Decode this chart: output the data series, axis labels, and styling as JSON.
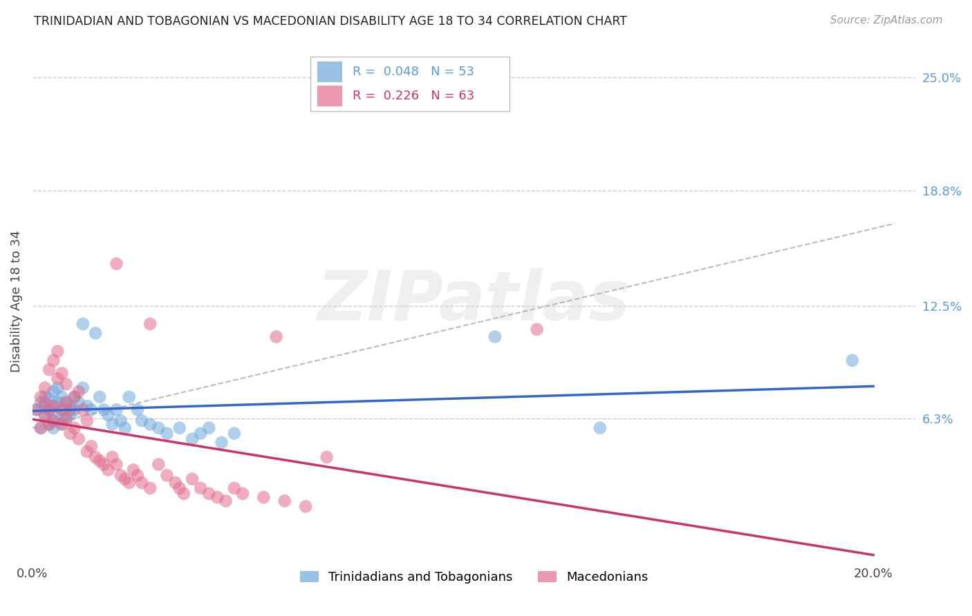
{
  "title": "TRINIDADIAN AND TOBAGONIAN VS MACEDONIAN DISABILITY AGE 18 TO 34 CORRELATION CHART",
  "source": "Source: ZipAtlas.com",
  "ylabel": "Disability Age 18 to 34",
  "xlim": [
    0.0,
    0.21
  ],
  "ylim": [
    -0.015,
    0.27
  ],
  "xticks": [
    0.0,
    0.05,
    0.1,
    0.15,
    0.2
  ],
  "xticklabels": [
    "0.0%",
    "",
    "",
    "",
    "20.0%"
  ],
  "ytick_positions": [
    0.063,
    0.125,
    0.188,
    0.25
  ],
  "ytick_labels": [
    "6.3%",
    "12.5%",
    "18.8%",
    "25.0%"
  ],
  "legend_blue_R": "0.048",
  "legend_blue_N": "53",
  "legend_pink_R": "0.226",
  "legend_pink_N": "63",
  "color_blue": "#6fa8dc",
  "color_pink": "#e06c8a",
  "trendline_blue_color": "#3366cc",
  "trendline_pink_color": "#cc3366",
  "dash_color": "#bbbbbb",
  "background_color": "#ffffff",
  "grid_color": "#cccccc",
  "blue_scatter_x": [
    0.001,
    0.002,
    0.002,
    0.003,
    0.003,
    0.003,
    0.004,
    0.004,
    0.004,
    0.005,
    0.005,
    0.005,
    0.005,
    0.006,
    0.006,
    0.006,
    0.007,
    0.007,
    0.007,
    0.008,
    0.008,
    0.009,
    0.009,
    0.01,
    0.01,
    0.011,
    0.012,
    0.012,
    0.013,
    0.014,
    0.015,
    0.016,
    0.017,
    0.018,
    0.019,
    0.02,
    0.021,
    0.022,
    0.023,
    0.025,
    0.026,
    0.028,
    0.03,
    0.032,
    0.035,
    0.038,
    0.04,
    0.042,
    0.045,
    0.048,
    0.11,
    0.195,
    0.135
  ],
  "blue_scatter_y": [
    0.068,
    0.072,
    0.058,
    0.065,
    0.07,
    0.075,
    0.06,
    0.068,
    0.074,
    0.062,
    0.07,
    0.058,
    0.078,
    0.065,
    0.072,
    0.08,
    0.06,
    0.068,
    0.075,
    0.063,
    0.072,
    0.065,
    0.07,
    0.068,
    0.075,
    0.072,
    0.115,
    0.08,
    0.07,
    0.068,
    0.11,
    0.075,
    0.068,
    0.065,
    0.06,
    0.068,
    0.062,
    0.058,
    0.075,
    0.068,
    0.062,
    0.06,
    0.058,
    0.055,
    0.058,
    0.052,
    0.055,
    0.058,
    0.05,
    0.055,
    0.108,
    0.095,
    0.058
  ],
  "pink_scatter_x": [
    0.001,
    0.002,
    0.002,
    0.003,
    0.003,
    0.003,
    0.004,
    0.004,
    0.004,
    0.005,
    0.005,
    0.005,
    0.006,
    0.006,
    0.007,
    0.007,
    0.007,
    0.008,
    0.008,
    0.008,
    0.009,
    0.009,
    0.01,
    0.01,
    0.011,
    0.011,
    0.012,
    0.013,
    0.013,
    0.014,
    0.015,
    0.016,
    0.017,
    0.018,
    0.019,
    0.02,
    0.021,
    0.022,
    0.023,
    0.024,
    0.025,
    0.026,
    0.028,
    0.03,
    0.032,
    0.034,
    0.035,
    0.036,
    0.038,
    0.04,
    0.042,
    0.044,
    0.046,
    0.048,
    0.05,
    0.055,
    0.06,
    0.065,
    0.07,
    0.02,
    0.028,
    0.058,
    0.12
  ],
  "pink_scatter_y": [
    0.068,
    0.075,
    0.058,
    0.065,
    0.072,
    0.08,
    0.06,
    0.068,
    0.09,
    0.062,
    0.07,
    0.095,
    0.085,
    0.1,
    0.06,
    0.068,
    0.088,
    0.063,
    0.072,
    0.082,
    0.055,
    0.068,
    0.058,
    0.075,
    0.052,
    0.078,
    0.068,
    0.045,
    0.062,
    0.048,
    0.042,
    0.04,
    0.038,
    0.035,
    0.042,
    0.038,
    0.032,
    0.03,
    0.028,
    0.035,
    0.032,
    0.028,
    0.025,
    0.038,
    0.032,
    0.028,
    0.025,
    0.022,
    0.03,
    0.025,
    0.022,
    0.02,
    0.018,
    0.025,
    0.022,
    0.02,
    0.018,
    0.015,
    0.042,
    0.148,
    0.115,
    0.108,
    0.112
  ],
  "dashed_line_x": [
    0.0,
    0.205
  ],
  "dashed_line_y": [
    0.058,
    0.17
  ]
}
